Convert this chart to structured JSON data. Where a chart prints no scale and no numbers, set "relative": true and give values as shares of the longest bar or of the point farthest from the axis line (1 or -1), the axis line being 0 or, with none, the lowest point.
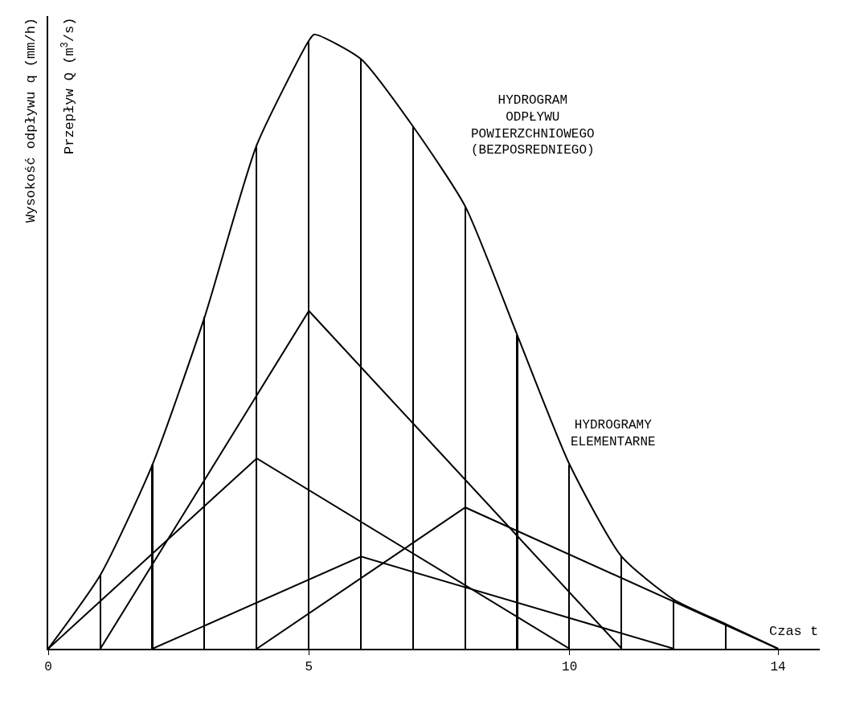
{
  "chart_data": {
    "type": "line",
    "relative": true,
    "xlabel": "Czas t",
    "ylabel": "Wysokość odpływu q (mm/h)",
    "xlim": [
      0,
      14.8
    ],
    "xticks": [
      0,
      5,
      10,
      14
    ],
    "marker": "none",
    "line_style": "solid",
    "series": [
      {
        "color": "#000000",
        "x": [
          0,
          1,
          2,
          3,
          4,
          5,
          5.1,
          6,
          7,
          8,
          9,
          10,
          11,
          12,
          13,
          14
        ],
        "values": [
          0,
          0.12,
          0.3,
          0.54,
          0.82,
          0.99,
          1,
          0.96,
          0.85,
          0.72,
          0.51,
          0.3,
          0.15,
          0.08,
          0.04,
          0
        ]
      },
      {
        "type": "bar",
        "color": "#000000",
        "x": [
          1,
          2,
          3,
          4,
          5,
          6,
          7,
          8,
          9,
          10,
          11,
          12,
          13
        ],
        "values": [
          0.12,
          0.3,
          0.54,
          0.82,
          0.99,
          0.96,
          0.85,
          0.72,
          0.51,
          0.3,
          0.15,
          0.08,
          0.04
        ]
      },
      {
        "color": "#000000",
        "x": [
          0,
          4,
          10
        ],
        "values": [
          0,
          0.31,
          0
        ]
      },
      {
        "color": "#000000",
        "x": [
          1,
          5,
          11
        ],
        "values": [
          0,
          0.55,
          0
        ]
      },
      {
        "color": "#000000",
        "x": [
          2,
          6,
          12
        ],
        "values": [
          0,
          0.15,
          0
        ]
      },
      {
        "color": "#000000",
        "x": [
          4,
          8,
          14
        ],
        "values": [
          0,
          0.23,
          0
        ]
      }
    ],
    "annotations": [
      "Przepływ Q (m$^{3}$/s)",
      "HYDROGRAM\nODPŁYWU\nPOWIERZCHNIOWEGO\n(BEZPOSREDNIEGO)",
      "HYDROGRAMY\nELEMENTARNE"
    ]
  }
}
